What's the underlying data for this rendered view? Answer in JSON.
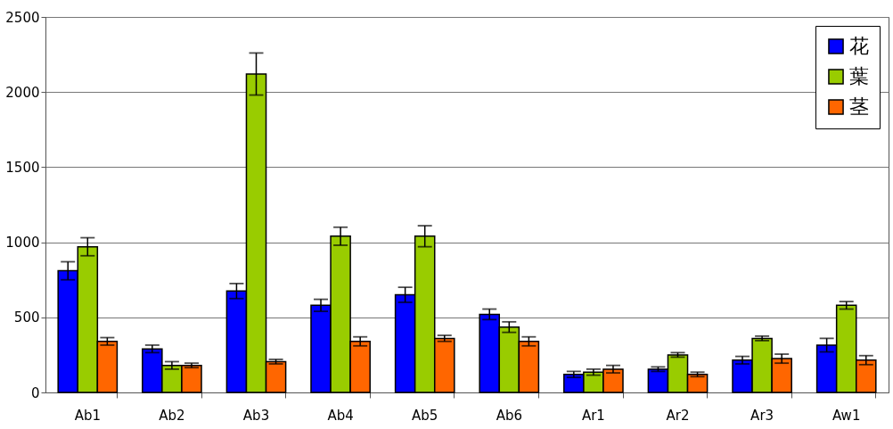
{
  "chart_data": {
    "type": "bar",
    "categories": [
      "Ab1",
      "Ab2",
      "Ab3",
      "Ab4",
      "Ab5",
      "Ab6",
      "Ar1",
      "Ar2",
      "Ar3",
      "Aw1"
    ],
    "series": [
      {
        "name": "花",
        "color": "#0000ff",
        "values": [
          810,
          290,
          675,
          580,
          650,
          520,
          120,
          155,
          215,
          315
        ],
        "errors": [
          60,
          25,
          50,
          40,
          50,
          35,
          20,
          15,
          25,
          45
        ]
      },
      {
        "name": "葉",
        "color": "#99cc00",
        "values": [
          970,
          180,
          2120,
          1040,
          1040,
          435,
          135,
          250,
          360,
          580
        ],
        "errors": [
          60,
          25,
          140,
          60,
          70,
          35,
          20,
          15,
          15,
          25
        ]
      },
      {
        "name": "茎",
        "color": "#ff6600",
        "values": [
          340,
          180,
          205,
          340,
          360,
          340,
          155,
          120,
          225,
          215
        ],
        "errors": [
          25,
          15,
          15,
          30,
          20,
          30,
          25,
          15,
          30,
          30
        ]
      }
    ],
    "ylim": [
      0,
      2500
    ],
    "yticks": [
      0,
      500,
      1000,
      1500,
      2000,
      2500
    ],
    "grid": "y",
    "legend": "top right"
  }
}
